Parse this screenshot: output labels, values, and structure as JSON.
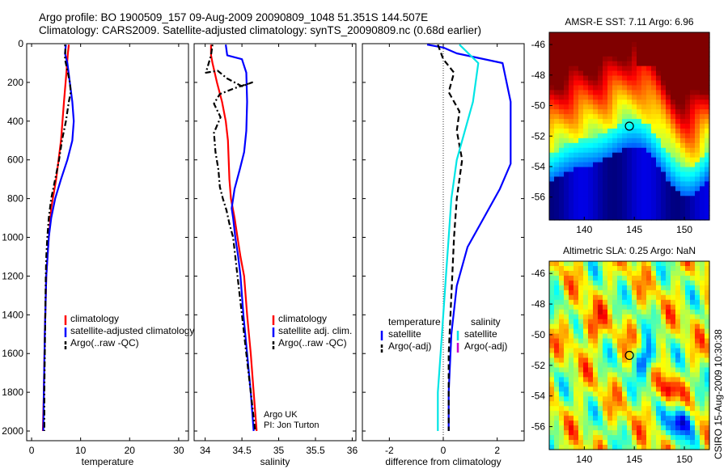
{
  "title": {
    "line1": "Argo profile: BO 1900509_157 09-Aug-2009 20090809_1048 51.351S 144.507E",
    "line2": "Climatology: CARS2009. Satellite-adjusted climatology: synTS_20090809.nc (0.68d earlier)"
  },
  "colors": {
    "climatology": "#ff0000",
    "satellite": "#0000ff",
    "argo": "#000000",
    "salinity_satellite": "#00e5e5",
    "salinity_argo": "#cc00cc"
  },
  "side_note": "CSIRO 15-Aug-2009 10:30:38",
  "chart_data": [
    {
      "type": "line",
      "panel": "temperature",
      "xlabel": "temperature",
      "ylabel": "",
      "xlim": [
        -1,
        32
      ],
      "ylim": [
        2050,
        0
      ],
      "y_reversed": true,
      "xticks": [
        "0",
        "10",
        "20",
        "30"
      ],
      "xtick_values": [
        0,
        10,
        20,
        30
      ],
      "yticks": [
        "0",
        "200",
        "400",
        "600",
        "800",
        "1000",
        "1200",
        "1400",
        "1600",
        "1800",
        "2000"
      ],
      "ytick_values": [
        0,
        200,
        400,
        600,
        800,
        1000,
        1200,
        1400,
        1600,
        1800,
        2000
      ],
      "legend": [
        "climatology",
        "satellite-adjusted climatology",
        "Argo(..raw -QC)"
      ],
      "legend_position": "lower-right",
      "series": [
        {
          "name": "climatology",
          "style": "solid",
          "color": "#ff0000",
          "points": [
            [
              7.6,
              5
            ],
            [
              7.4,
              50
            ],
            [
              7.1,
              150
            ],
            [
              6.6,
              300
            ],
            [
              6.0,
              500
            ],
            [
              5.0,
              700
            ],
            [
              4.0,
              850
            ],
            [
              3.5,
              1000
            ],
            [
              3.0,
              1200
            ],
            [
              2.7,
              1500
            ],
            [
              2.5,
              1800
            ],
            [
              2.3,
              2000
            ]
          ]
        },
        {
          "name": "satellite-adjusted climatology",
          "style": "solid",
          "color": "#0000ff",
          "points": [
            [
              7.0,
              5
            ],
            [
              6.8,
              50
            ],
            [
              7.3,
              100
            ],
            [
              7.8,
              200
            ],
            [
              8.3,
              300
            ],
            [
              8.6,
              400
            ],
            [
              8.3,
              500
            ],
            [
              7.3,
              600
            ],
            [
              6.0,
              700
            ],
            [
              4.8,
              800
            ],
            [
              4.0,
              900
            ],
            [
              3.5,
              1000
            ],
            [
              3.0,
              1200
            ],
            [
              2.7,
              1500
            ],
            [
              2.5,
              1800
            ],
            [
              2.4,
              2000
            ]
          ]
        },
        {
          "name": "Argo(..raw -QC)",
          "style": "dash-dot",
          "color": "#000000",
          "points": [
            [
              6.8,
              5
            ],
            [
              6.9,
              30
            ],
            [
              6.8,
              80
            ],
            [
              7.4,
              150
            ],
            [
              7.8,
              200
            ],
            [
              8.0,
              250
            ],
            [
              7.6,
              300
            ],
            [
              7.0,
              400
            ],
            [
              6.2,
              500
            ],
            [
              5.6,
              600
            ],
            [
              4.8,
              700
            ],
            [
              4.0,
              800
            ],
            [
              3.5,
              900
            ],
            [
              3.2,
              1000
            ],
            [
              3.0,
              1100
            ],
            [
              2.9,
              1200
            ],
            [
              2.8,
              1400
            ],
            [
              2.7,
              1600
            ],
            [
              2.6,
              1800
            ],
            [
              2.6,
              2000
            ]
          ]
        }
      ]
    },
    {
      "type": "line",
      "panel": "salinity",
      "xlabel": "salinity",
      "ylabel": "",
      "xlim": [
        33.85,
        36.05
      ],
      "ylim": [
        2050,
        0
      ],
      "y_reversed": true,
      "xticks": [
        "34",
        "34.5",
        "35",
        "35.5",
        "36"
      ],
      "xtick_values": [
        34,
        34.5,
        35,
        35.5,
        36
      ],
      "legend": [
        "climatology",
        "satellite adj. clim.",
        "Argo(..raw -QC)"
      ],
      "legend_position": "lower-right",
      "annotation": [
        "Argo UK",
        "PI: Jon Turton"
      ],
      "series": [
        {
          "name": "climatology",
          "style": "solid",
          "color": "#ff0000",
          "points": [
            [
              34.08,
              5
            ],
            [
              34.08,
              60
            ],
            [
              34.1,
              100
            ],
            [
              34.16,
              200
            ],
            [
              34.23,
              300
            ],
            [
              34.28,
              400
            ],
            [
              34.31,
              500
            ],
            [
              34.32,
              600
            ],
            [
              34.33,
              700
            ],
            [
              34.35,
              800
            ],
            [
              34.4,
              900
            ],
            [
              34.44,
              1000
            ],
            [
              34.48,
              1100
            ],
            [
              34.53,
              1200
            ],
            [
              34.57,
              1400
            ],
            [
              34.62,
              1600
            ],
            [
              34.66,
              1800
            ],
            [
              34.7,
              2000
            ]
          ]
        },
        {
          "name": "satellite adj. clim.",
          "style": "solid",
          "color": "#0000ff",
          "points": [
            [
              34.28,
              5
            ],
            [
              34.3,
              60
            ],
            [
              34.5,
              80
            ],
            [
              34.56,
              150
            ],
            [
              34.57,
              300
            ],
            [
              34.56,
              450
            ],
            [
              34.53,
              560
            ],
            [
              34.47,
              650
            ],
            [
              34.4,
              750
            ],
            [
              34.36,
              850
            ],
            [
              34.38,
              900
            ],
            [
              34.41,
              1000
            ],
            [
              34.45,
              1100
            ],
            [
              34.48,
              1200
            ],
            [
              34.52,
              1400
            ],
            [
              34.57,
              1600
            ],
            [
              34.62,
              1800
            ],
            [
              34.66,
              2000
            ]
          ]
        },
        {
          "name": "Argo(..raw -QC)",
          "style": "dash-dot",
          "color": "#000000",
          "points": [
            [
              34.1,
              5
            ],
            [
              34.08,
              60
            ],
            [
              34.01,
              150
            ],
            [
              34.17,
              140
            ],
            [
              34.3,
              180
            ],
            [
              34.5,
              220
            ],
            [
              34.64,
              200
            ],
            [
              34.4,
              230
            ],
            [
              34.2,
              260
            ],
            [
              34.12,
              310
            ],
            [
              34.21,
              380
            ],
            [
              34.12,
              460
            ],
            [
              34.14,
              560
            ],
            [
              34.18,
              650
            ],
            [
              34.2,
              740
            ],
            [
              34.24,
              800
            ],
            [
              34.29,
              860
            ],
            [
              34.33,
              930
            ],
            [
              34.38,
              1000
            ],
            [
              34.44,
              1200
            ],
            [
              34.5,
              1400
            ],
            [
              34.56,
              1600
            ],
            [
              34.62,
              1800
            ],
            [
              34.68,
              2000
            ]
          ]
        }
      ]
    },
    {
      "type": "line",
      "panel": "difference",
      "xlabel": "difference from climatology",
      "ylabel": "",
      "xlim": [
        -3.0,
        3.0
      ],
      "ylim": [
        2050,
        0
      ],
      "y_reversed": true,
      "xticks": [
        "-2",
        "0",
        "2"
      ],
      "xtick_values": [
        -2,
        0,
        2
      ],
      "legend_headers": [
        "temperature",
        "salinity"
      ],
      "legend": [
        "satellite",
        "Argo(-adj)",
        "satellite",
        "Argo(-adj)"
      ],
      "legend_position": "lower-center",
      "series": [
        {
          "name": "satellite",
          "group": "temperature",
          "style": "solid",
          "color": "#0000ff",
          "points": [
            [
              -0.6,
              5
            ],
            [
              0.0,
              20
            ],
            [
              0.5,
              50
            ],
            [
              2.2,
              100
            ],
            [
              2.5,
              300
            ],
            [
              2.5,
              500
            ],
            [
              2.5,
              620
            ],
            [
              2.1,
              750
            ],
            [
              1.5,
              900
            ],
            [
              0.9,
              1050
            ],
            [
              0.5,
              1250
            ],
            [
              0.3,
              1500
            ],
            [
              0.2,
              1800
            ],
            [
              0.2,
              2000
            ]
          ]
        },
        {
          "name": "Argo(-adj)",
          "group": "temperature",
          "style": "dashed",
          "color": "#000000",
          "points": [
            [
              -0.2,
              5
            ],
            [
              0.0,
              80
            ],
            [
              0.4,
              150
            ],
            [
              0.2,
              250
            ],
            [
              0.6,
              350
            ],
            [
              0.5,
              450
            ],
            [
              0.7,
              600
            ],
            [
              0.5,
              800
            ],
            [
              0.4,
              1000
            ],
            [
              0.3,
              1300
            ],
            [
              0.2,
              1600
            ],
            [
              0.2,
              2000
            ]
          ]
        },
        {
          "name": "satellite",
          "group": "salinity",
          "style": "solid",
          "color": "#00e5e5",
          "points": [
            [
              0.6,
              5
            ],
            [
              1.3,
              100
            ],
            [
              1.1,
              300
            ],
            [
              0.8,
              450
            ],
            [
              0.5,
              600
            ],
            [
              0.3,
              800
            ],
            [
              0.2,
              1000
            ],
            [
              0.1,
              1200
            ],
            [
              0.0,
              1400
            ],
            [
              -0.1,
              1600
            ],
            [
              -0.2,
              1800
            ],
            [
              -0.2,
              2000
            ]
          ]
        },
        {
          "name": "Argo(-adj)",
          "group": "salinity",
          "style": "solid",
          "color": "#cc00cc",
          "points": []
        }
      ]
    },
    {
      "type": "heatmap",
      "panel": "sst_map",
      "title": "AMSR-E SST: 7.11 Argo: 6.96",
      "xlim": [
        136.5,
        152.5
      ],
      "ylim": [
        -57.5,
        -45.2
      ],
      "xticks": [
        "140",
        "145",
        "150"
      ],
      "xtick_values": [
        140,
        145,
        150
      ],
      "yticks": [
        "-46",
        "-48",
        "-50",
        "-52",
        "-54",
        "-56"
      ],
      "ytick_values": [
        -46,
        -48,
        -50,
        -52,
        -54,
        -56
      ],
      "marker": {
        "lon": 144.507,
        "lat": -51.351
      },
      "colormap": "jet"
    },
    {
      "type": "heatmap",
      "panel": "sla_map",
      "title": "Altimetric SLA: 0.25 Argo: NaN",
      "xlim": [
        136.5,
        152.5
      ],
      "ylim": [
        -57.5,
        -45.2
      ],
      "xticks": [
        "140",
        "145",
        "150"
      ],
      "xtick_values": [
        140,
        145,
        150
      ],
      "yticks": [
        "-46",
        "-48",
        "-50",
        "-52",
        "-54",
        "-56"
      ],
      "ytick_values": [
        -46,
        -48,
        -50,
        -52,
        -54,
        -56
      ],
      "marker": {
        "lon": 144.507,
        "lat": -51.351
      },
      "colormap": "jet"
    }
  ]
}
